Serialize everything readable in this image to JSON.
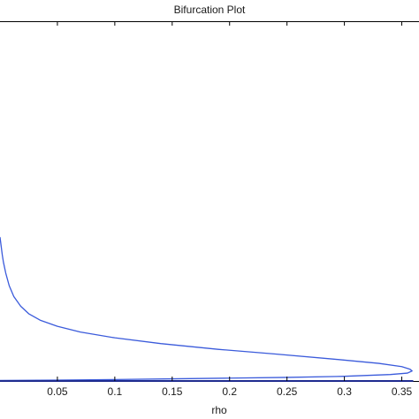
{
  "chart_data": {
    "type": "line",
    "title": "Bifurcation Plot",
    "xlabel": "rho",
    "ylabel": "",
    "xlim": [
      0,
      0.365
    ],
    "ylim": [
      0,
      1
    ],
    "xticks": [
      0.05,
      0.1,
      0.15,
      0.2,
      0.25,
      0.3,
      0.35
    ],
    "xtick_labels": [
      "0.05",
      "0.1",
      "0.15",
      "0.2",
      "0.25",
      "0.3",
      "0.35"
    ],
    "grid": false,
    "legend": "none",
    "series": [
      {
        "color": "#3b5bdb",
        "x": [
          0.0,
          0.001,
          0.002,
          0.003,
          0.005,
          0.008,
          0.012,
          0.018,
          0.025,
          0.035,
          0.05,
          0.07,
          0.1,
          0.14,
          0.19,
          0.24,
          0.29,
          0.33,
          0.35,
          0.357,
          0.359,
          0.355,
          0.34,
          0.3,
          0.25,
          0.2,
          0.15,
          0.1,
          0.05,
          0.0
        ],
        "y": [
          0.4,
          0.375,
          0.35,
          0.33,
          0.3,
          0.265,
          0.235,
          0.208,
          0.187,
          0.169,
          0.152,
          0.136,
          0.12,
          0.104,
          0.088,
          0.075,
          0.061,
          0.049,
          0.04,
          0.033,
          0.028,
          0.022,
          0.018,
          0.013,
          0.01,
          0.008,
          0.006,
          0.004,
          0.0025,
          0.0015
        ]
      },
      {
        "color": "#1f2c8f",
        "x": [
          0.0,
          0.1,
          0.2,
          0.3,
          0.36
        ],
        "y": [
          0.0,
          0.0,
          0.0,
          0.0,
          0.0
        ]
      }
    ]
  }
}
